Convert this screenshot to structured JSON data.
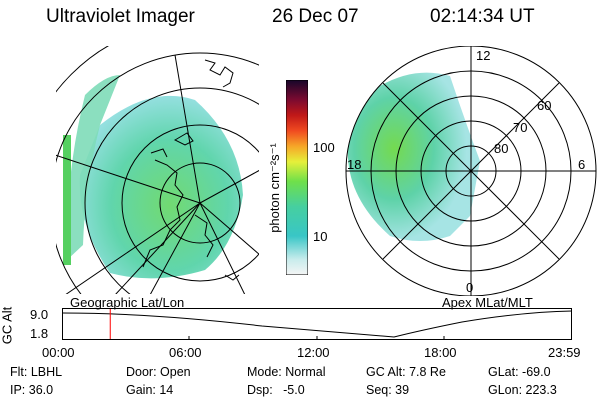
{
  "header": {
    "instrument": "Ultraviolet Imager",
    "date": "26 Dec 07",
    "time": "02:14:34 UT"
  },
  "colorbar": {
    "unit_label": "photon cm⁻²s⁻¹",
    "ticks": [
      "100",
      "10"
    ]
  },
  "left_map": {
    "caption": "Geographic Lat/Lon"
  },
  "right_map": {
    "caption": "Apex MLat/MLT",
    "mlt_labels": [
      "12",
      "18",
      "6",
      "0"
    ],
    "mlat_labels": [
      "60",
      "70",
      "80"
    ]
  },
  "timeline": {
    "ylabel": "GC Alt",
    "y_top": "9.0",
    "y_bottom": "1.8",
    "ticks": [
      "00:00",
      "06:00",
      "12:00",
      "18:00",
      "23:59"
    ],
    "current_time_fraction": 0.0946
  },
  "info": {
    "filter": "Flt: LBHL",
    "ip": "IP: 36.0",
    "door": "Door: Open",
    "gain": "Gain: 14",
    "mode": "Mode: Normal",
    "dsp": "Dsp:   -5.0",
    "gc_alt": "GC Alt: 7.8 Re",
    "seq": "Seq: 39",
    "glat": "GLat: -69.0",
    "glon": "GLon: 223.3"
  },
  "colors": {
    "marker": "#ff0000",
    "emission_green": "#5fd25f",
    "emission_cyan": "#41c8c8"
  }
}
